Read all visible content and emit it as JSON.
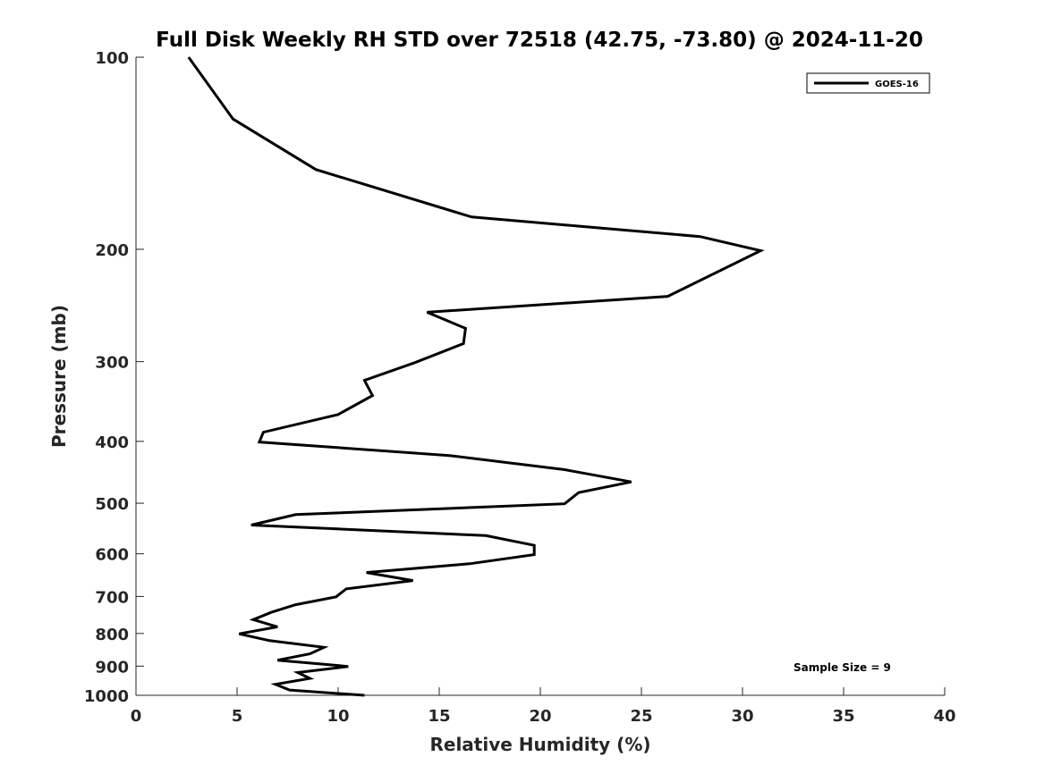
{
  "chart_data": {
    "type": "line",
    "title": "Full Disk Weekly RH STD over 72518 (42.75, -73.80) @ 2024-11-20",
    "xlabel": "Relative Humidity (%)",
    "ylabel": "Pressure (mb)",
    "xlim": [
      0,
      40
    ],
    "ylim": [
      100,
      1000
    ],
    "y_scale": "log",
    "y_reversed": true,
    "grid": false,
    "legend_position": "top-right",
    "x_ticks": [
      "0",
      "5",
      "10",
      "15",
      "20",
      "25",
      "30",
      "35",
      "40"
    ],
    "y_ticks": [
      "100",
      "200",
      "300",
      "400",
      "500",
      "600",
      "700",
      "800",
      "900",
      "1000"
    ],
    "annotation": "Sample Size = 9",
    "series": [
      {
        "name": "GOES-16",
        "color": "#000000",
        "points": [
          [
            2.6,
            100
          ],
          [
            4.8,
            125
          ],
          [
            8.9,
            150
          ],
          [
            16.6,
            178
          ],
          [
            27.9,
            191
          ],
          [
            30.9,
            201
          ],
          [
            26.3,
            237
          ],
          [
            14.4,
            251
          ],
          [
            16.3,
            266
          ],
          [
            16.2,
            281
          ],
          [
            13.8,
            301
          ],
          [
            11.3,
            321
          ],
          [
            11.7,
            339
          ],
          [
            10.0,
            363
          ],
          [
            6.3,
            387
          ],
          [
            6.1,
            401
          ],
          [
            15.5,
            421
          ],
          [
            21.2,
            443
          ],
          [
            24.5,
            463
          ],
          [
            21.9,
            481
          ],
          [
            21.2,
            501
          ],
          [
            7.9,
            521
          ],
          [
            5.7,
            541
          ],
          [
            17.3,
            562
          ],
          [
            19.7,
            582
          ],
          [
            19.7,
            602
          ],
          [
            16.5,
            622
          ],
          [
            11.4,
            642
          ],
          [
            13.7,
            661
          ],
          [
            10.4,
            681
          ],
          [
            9.9,
            701
          ],
          [
            7.9,
            721
          ],
          [
            6.7,
            741
          ],
          [
            5.8,
            761
          ],
          [
            7.0,
            781
          ],
          [
            5.1,
            801
          ],
          [
            6.6,
            821
          ],
          [
            9.3,
            841
          ],
          [
            8.6,
            861
          ],
          [
            7.0,
            881
          ],
          [
            10.5,
            901
          ],
          [
            8.0,
            921
          ],
          [
            8.6,
            941
          ],
          [
            6.9,
            961
          ],
          [
            7.6,
            981
          ],
          [
            11.3,
            1000
          ]
        ]
      }
    ]
  }
}
